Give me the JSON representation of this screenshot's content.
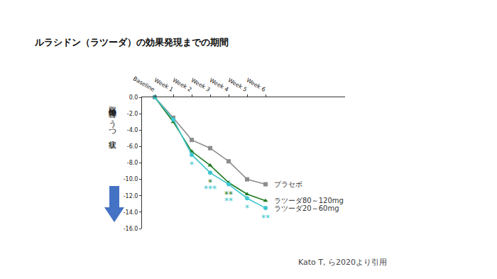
{
  "chart_data": {
    "type": "line",
    "title": "ルラシドン（ラツーダ）の効果発現までの期間",
    "y_label": "双極性障害のうつ症状",
    "source": "Kato T, ら2020より引用",
    "categories": [
      "Baseline",
      "Week 1",
      "Week 2",
      "Week 3",
      "Week 4",
      "Week 5",
      "Week 6"
    ],
    "series": [
      {
        "name": "プラセボ",
        "color": "#8c8c8c",
        "marker": "square",
        "values": [
          0.0,
          -2.5,
          -5.2,
          -6.2,
          -7.8,
          -10.0,
          -10.6
        ]
      },
      {
        "name": "ラツーダ80～120mg",
        "color": "#1f7a1f",
        "marker": "triangle",
        "values": [
          0.0,
          -3.0,
          -6.6,
          -8.3,
          -10.4,
          -11.8,
          -12.6
        ],
        "annotations": [
          null,
          null,
          null,
          "*",
          "**",
          null,
          null
        ]
      },
      {
        "name": "ラツーダ20～60mg",
        "color": "#3ec6cf",
        "marker": "circle",
        "values": [
          0.0,
          -2.7,
          -7.0,
          -9.2,
          -10.6,
          -12.3,
          -13.5
        ],
        "annotations": [
          null,
          null,
          "*",
          "***",
          "**",
          "*",
          "**"
        ]
      }
    ],
    "ylim": [
      -16,
      0
    ],
    "yticks": [
      {
        "value": 0,
        "label": "0.0"
      },
      {
        "value": -2,
        "label": "-2.0"
      },
      {
        "value": -4,
        "label": "-4.0"
      },
      {
        "value": -6,
        "label": "-6.0"
      },
      {
        "value": -8,
        "label": "-8.0"
      },
      {
        "value": -10,
        "label": "-10.0"
      },
      {
        "value": -12,
        "label": "-12.0"
      },
      {
        "value": -14,
        "label": "-14.0"
      },
      {
        "value": -16,
        "label": "-16.0"
      }
    ],
    "grid": false
  }
}
